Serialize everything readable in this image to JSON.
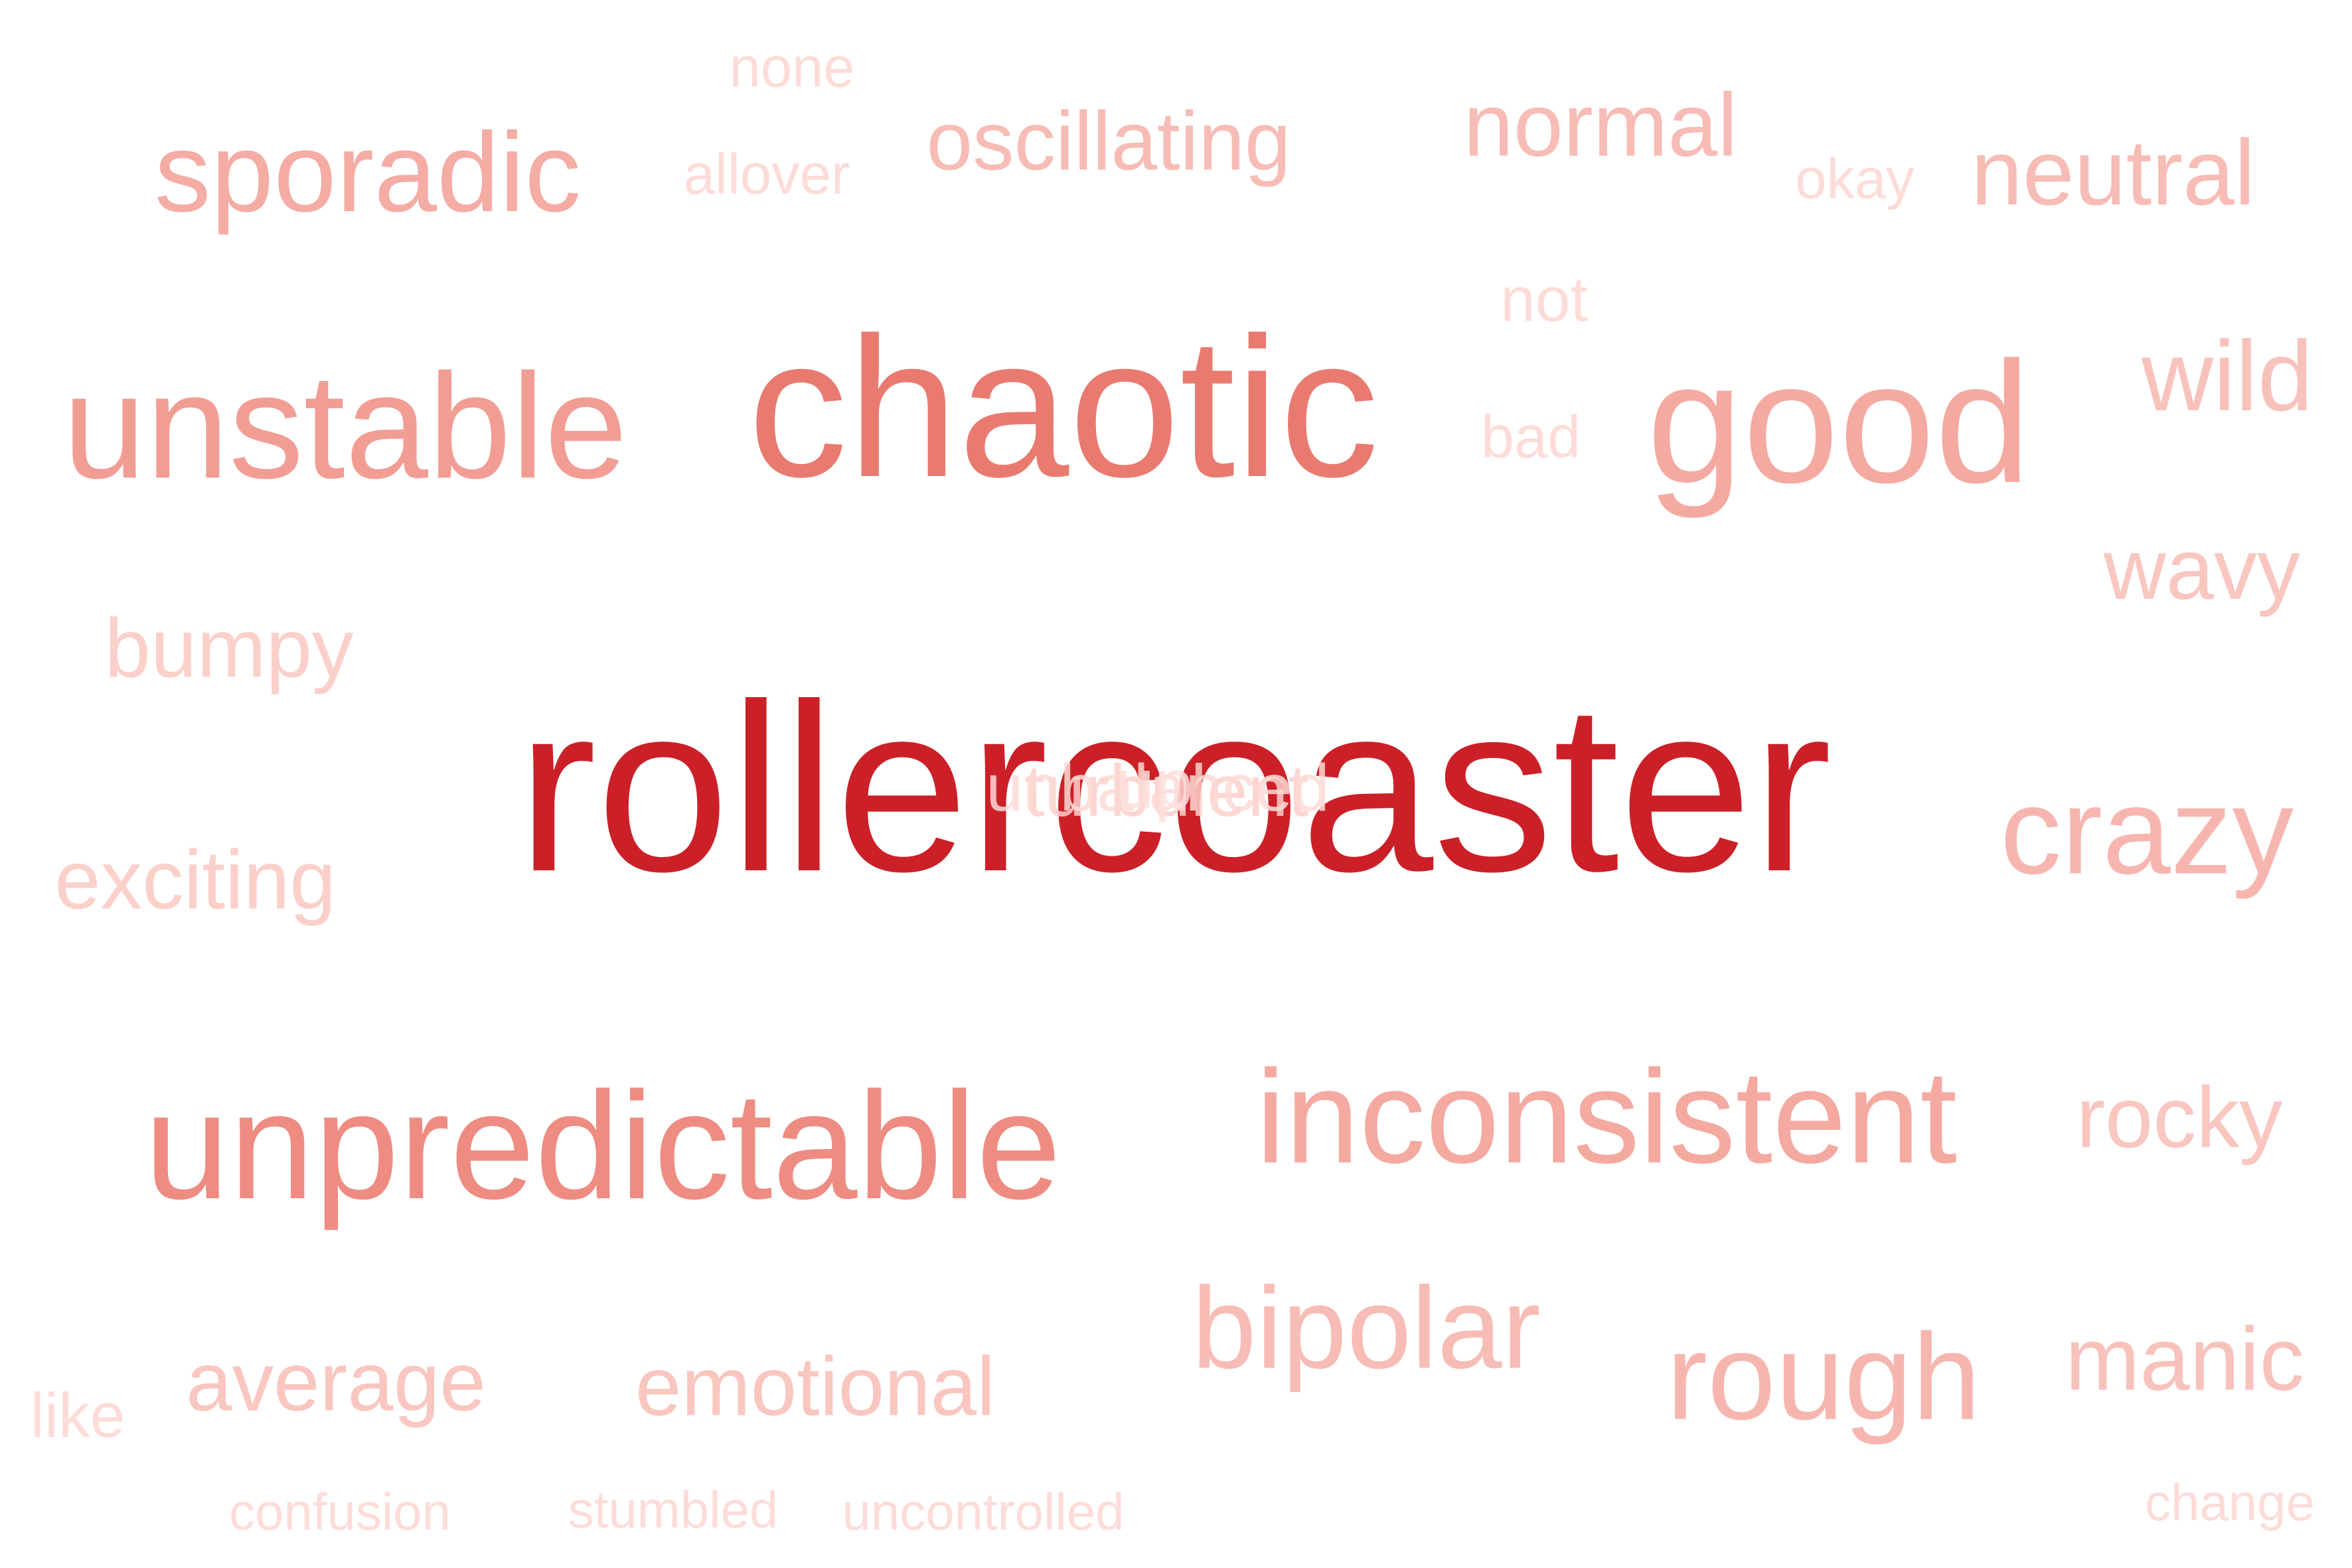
{
  "words": [
    {
      "id": "rollercoaster",
      "text": "rollercoaster",
      "color": "#cb2027"
    },
    {
      "id": "chaotic",
      "text": "chaotic",
      "color": "#e97a70"
    },
    {
      "id": "unpredictable",
      "text": "unpredictable",
      "color": "#ee8c82"
    },
    {
      "id": "unstable",
      "text": "unstable",
      "color": "#f29d94"
    },
    {
      "id": "good",
      "text": "good",
      "color": "#f4a9a1"
    },
    {
      "id": "inconsistent",
      "text": "inconsistent",
      "color": "#f4a9a1"
    },
    {
      "id": "sporadic",
      "text": "sporadic",
      "color": "#f4aca4"
    },
    {
      "id": "rough",
      "text": "rough",
      "color": "#f6b6af"
    },
    {
      "id": "crazy",
      "text": "crazy",
      "color": "#f6b6af"
    },
    {
      "id": "bipolar",
      "text": "bipolar",
      "color": "#f7bcb5"
    },
    {
      "id": "oscillating",
      "text": "oscillating",
      "color": "#f7bcb5"
    },
    {
      "id": "normal",
      "text": "normal",
      "color": "#f7bcb5"
    },
    {
      "id": "neutral",
      "text": "neutral",
      "color": "#f7bcb5"
    },
    {
      "id": "wild",
      "text": "wild",
      "color": "#f8c2bc"
    },
    {
      "id": "manic",
      "text": "manic",
      "color": "#f8c2bc"
    },
    {
      "id": "wavy",
      "text": "wavy",
      "color": "#f9c6c0"
    },
    {
      "id": "rocky",
      "text": "rocky",
      "color": "#f9c6c0"
    },
    {
      "id": "emotional",
      "text": "emotional",
      "color": "#f9c6c0"
    },
    {
      "id": "average",
      "text": "average",
      "color": "#f9c6c0"
    },
    {
      "id": "bumpy",
      "text": "bumpy",
      "color": "#fbd0ca"
    },
    {
      "id": "exciting",
      "text": "exciting",
      "color": "#fbd0ca"
    },
    {
      "id": "none",
      "text": "none",
      "color": "#fddcd8"
    },
    {
      "id": "allover",
      "text": "allover",
      "color": "#fddcd8"
    },
    {
      "id": "okay",
      "text": "okay",
      "color": "#fddcd8"
    },
    {
      "id": "not",
      "text": "not",
      "color": "#fddcd8"
    },
    {
      "id": "bad",
      "text": "bad",
      "color": "#fddcd8"
    },
    {
      "id": "like",
      "text": "like",
      "color": "#fddcd8"
    },
    {
      "id": "confusion",
      "text": "confusion",
      "color": "#fddcd8"
    },
    {
      "id": "stumbled",
      "text": "stumbled",
      "color": "#fddcd8"
    },
    {
      "id": "uncontrolled",
      "text": "uncontrolled",
      "color": "#fddcd8"
    },
    {
      "id": "change",
      "text": "change",
      "color": "#fddcd8"
    }
  ],
  "overlap_words": [
    {
      "id": "turbulent",
      "text": "turbulent",
      "color": "#fdd0cb"
    },
    {
      "id": "unbalanced",
      "text": "unbalanced",
      "color": "#fddad5"
    },
    {
      "id": "up",
      "text": "up",
      "color": "#fee0dc"
    }
  ]
}
